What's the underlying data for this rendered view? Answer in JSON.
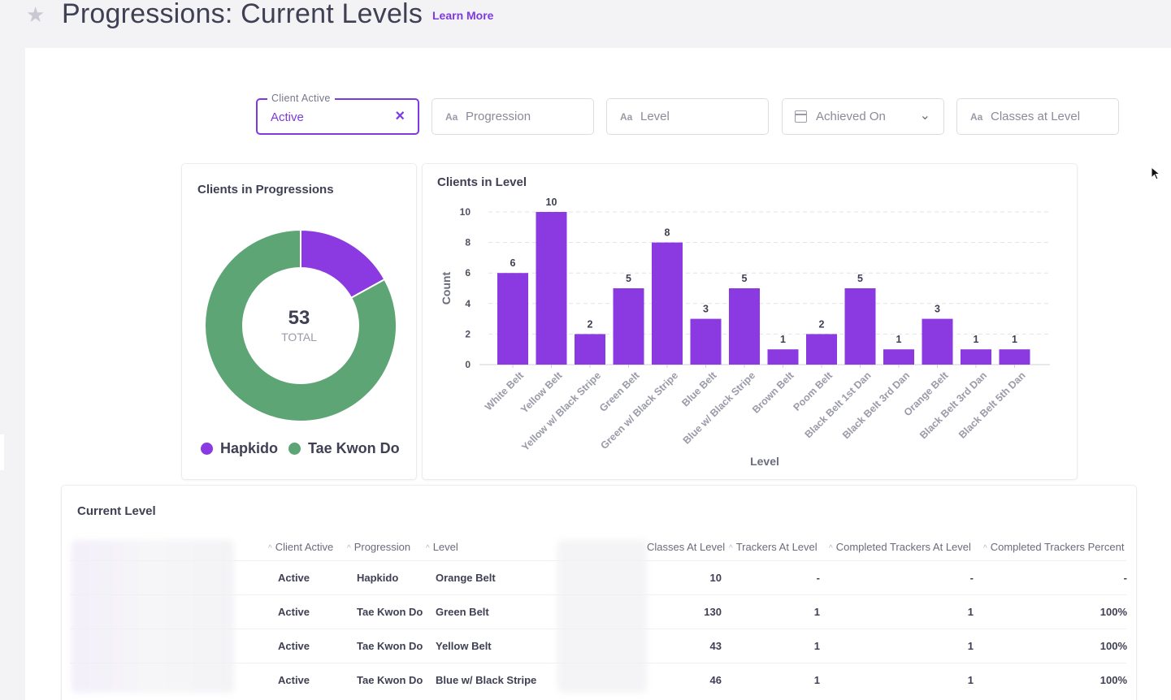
{
  "header": {
    "title": "Progressions: Current Levels",
    "learn_more": "Learn More"
  },
  "filters": {
    "client_active": {
      "label": "Client Active",
      "value": "Active"
    },
    "progression": {
      "icon": "Aa",
      "placeholder": "Progression"
    },
    "level": {
      "icon": "Aa",
      "placeholder": "Level"
    },
    "achieved_on": {
      "placeholder": "Achieved On"
    },
    "classes_at_level": {
      "icon": "Aa",
      "placeholder": "Classes at Level"
    }
  },
  "donut": {
    "title": "Clients in Progressions",
    "total": "53",
    "total_label": "TOTAL",
    "segments": [
      {
        "name": "Hapkido",
        "value": 9,
        "color": "#8a3ae0"
      },
      {
        "name": "Tae Kwon Do",
        "value": 44,
        "color": "#5ea575"
      }
    ]
  },
  "chart_data": {
    "type": "bar",
    "title": "Clients in Level",
    "xlabel": "Level",
    "ylabel": "Count",
    "ylim": [
      0,
      10
    ],
    "yticks": [
      0,
      2,
      4,
      6,
      8,
      10
    ],
    "color": "#8a3ae0",
    "categories": [
      "White Belt",
      "Yellow Belt",
      "Yellow w/ Black Stripe",
      "Green Belt",
      "Green w/ Black Stripe",
      "Blue Belt",
      "Blue w/ Black Stripe",
      "Brown Belt",
      "Poom Belt",
      "Black Belt 1st Dan",
      "Black Belt 3rd Dan",
      "Orange Belt",
      "Black Belt 3rd Dan",
      "Black Belt 5th Dan"
    ],
    "values": [
      6,
      10,
      2,
      5,
      8,
      3,
      5,
      1,
      2,
      5,
      1,
      3,
      1,
      1
    ]
  },
  "table": {
    "title": "Current Level",
    "headers": [
      "Client Active",
      "Progression",
      "Level",
      "Classes At Level",
      "Trackers At Level",
      "Completed Trackers At Level",
      "Completed Trackers Percent"
    ],
    "rows": [
      [
        "Active",
        "Hapkido",
        "Orange Belt",
        "10",
        "-",
        "-",
        "-"
      ],
      [
        "Active",
        "Tae Kwon Do",
        "Green Belt",
        "130",
        "1",
        "1",
        "100%"
      ],
      [
        "Active",
        "Tae Kwon Do",
        "Yellow Belt",
        "43",
        "1",
        "1",
        "100%"
      ],
      [
        "Active",
        "Tae Kwon Do",
        "Blue w/ Black Stripe",
        "46",
        "1",
        "1",
        "100%"
      ]
    ]
  }
}
